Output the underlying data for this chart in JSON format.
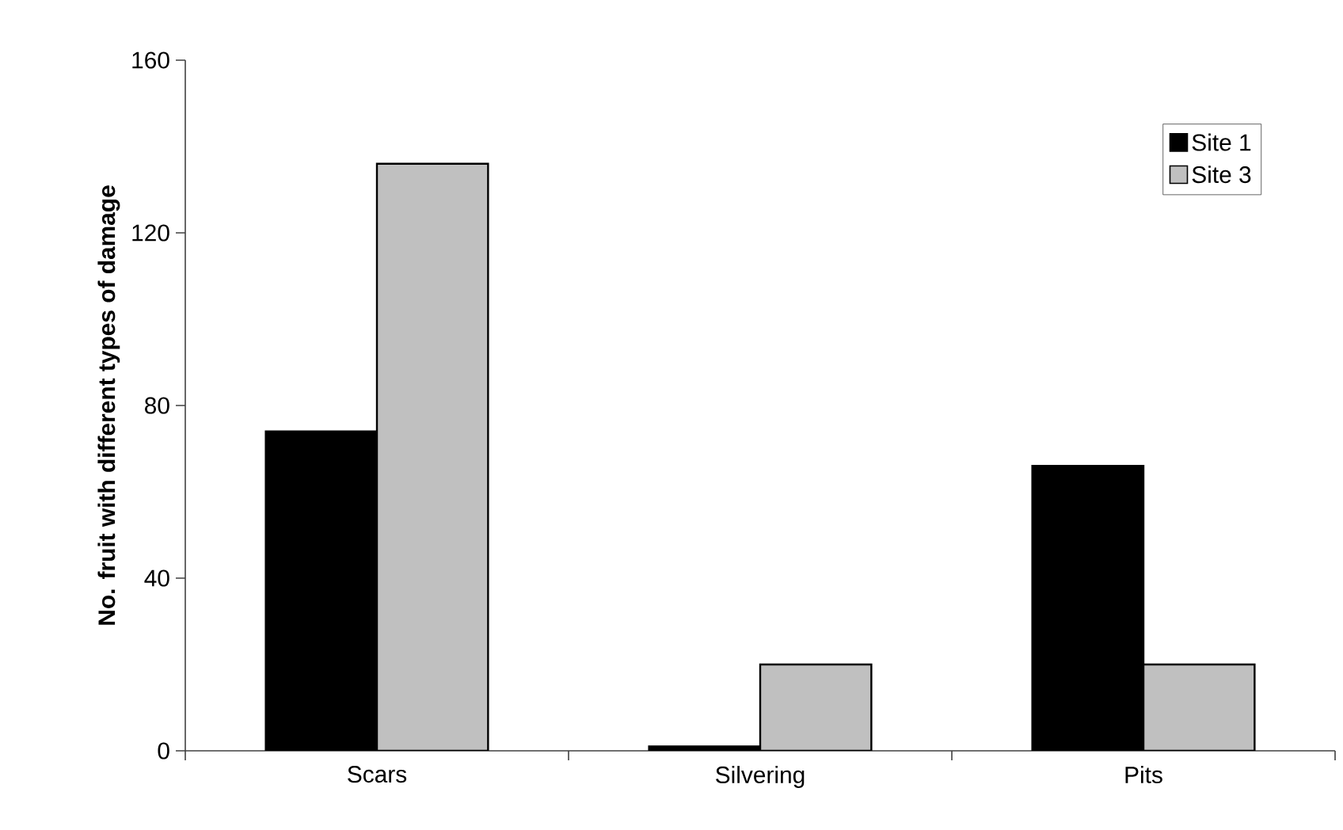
{
  "chart_data": {
    "type": "bar",
    "ylabel": "No. fruit with different types of damage",
    "categories": [
      "Scars",
      "Silvering",
      "Pits"
    ],
    "series": [
      {
        "name": "Site 1",
        "color": "#000000",
        "values": [
          74,
          1,
          66
        ]
      },
      {
        "name": "Site 3",
        "color": "#c0c0c0",
        "values": [
          136,
          20,
          20
        ]
      }
    ],
    "ylim": [
      0,
      160
    ],
    "yticks": [
      0,
      40,
      80,
      120,
      160
    ],
    "grid": false,
    "legend": "top right"
  }
}
